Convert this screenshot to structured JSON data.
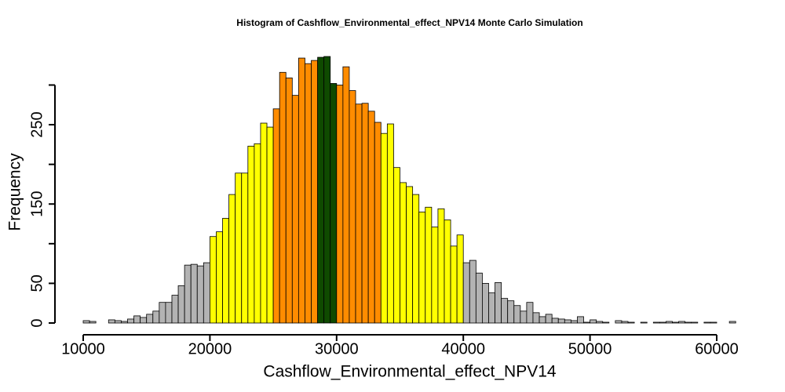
{
  "chart_data": {
    "type": "histogram",
    "title": "Histogram of  Cashflow_Environmental_effect_NPV14  Monte Carlo Simulation",
    "x_label": "Cashflow_Environmental_effect_NPV14",
    "y_label": "Frequency",
    "bins": [
      10000,
      10500,
      11000,
      11500,
      12000,
      12500,
      13000,
      13500,
      14000,
      14500,
      15000,
      15500,
      16000,
      16500,
      17000,
      17500,
      18000,
      18500,
      19000,
      19500,
      20000,
      20500,
      21000,
      21500,
      22000,
      22500,
      23000,
      23500,
      24000,
      24500,
      25000,
      25500,
      26000,
      26500,
      27000,
      27500,
      28000,
      28500,
      29000,
      29500,
      30000,
      30500,
      31000,
      31500,
      32000,
      32500,
      33000,
      33500,
      34000,
      34500,
      35000,
      35500,
      36000,
      36500,
      37000,
      37500,
      38000,
      38500,
      39000,
      39500,
      40000,
      40500,
      41000,
      41500,
      42000,
      42500,
      43000,
      43500,
      44000,
      44500,
      45000,
      45500,
      46000,
      46500,
      47000,
      47500,
      48000,
      48500,
      49000,
      49500,
      50000,
      50500,
      51000,
      51500,
      52000,
      52500,
      53000,
      53500,
      54000,
      54500,
      55000,
      55500,
      56000,
      56500,
      57000,
      57500,
      58000,
      58500,
      59000,
      59500,
      60000,
      60500,
      61000,
      61500
    ],
    "values": [
      3,
      2,
      0,
      0,
      4,
      3,
      2,
      5,
      9,
      7,
      11,
      15,
      26,
      26,
      35,
      47,
      73,
      74,
      72,
      76,
      109,
      115,
      132,
      162,
      189,
      189,
      223,
      226,
      252,
      247,
      270,
      316,
      309,
      287,
      334,
      327,
      331,
      335,
      336,
      302,
      300,
      323,
      293,
      276,
      277,
      267,
      253,
      239,
      251,
      196,
      177,
      172,
      162,
      140,
      146,
      121,
      144,
      130,
      97,
      111,
      76,
      79,
      63,
      50,
      38,
      51,
      31,
      28,
      22,
      15,
      26,
      13,
      8,
      11,
      6,
      5,
      4,
      3,
      8,
      1,
      4,
      2,
      1,
      0,
      3,
      2,
      1,
      0,
      1,
      0,
      1,
      1,
      2,
      1,
      2,
      1,
      1,
      0,
      1,
      1,
      0,
      0,
      2
    ],
    "color": "#b3b3b3",
    "color_ranges": [
      {
        "range": [
          20000,
          25000
        ],
        "color": "#ffff00"
      },
      {
        "range": [
          25000,
          28500
        ],
        "color": "#ff8c00"
      },
      {
        "range": [
          28500,
          30000
        ],
        "color": "#0f4a00"
      },
      {
        "range": [
          30000,
          33500
        ],
        "color": "#ff8c00"
      },
      {
        "range": [
          33500,
          40000
        ],
        "color": "#ffff00"
      }
    ],
    "xlim": [
      10000,
      60000
    ],
    "xticks": [
      10000,
      20000,
      30000,
      40000,
      50000,
      60000
    ],
    "ylim": [
      0,
      340
    ],
    "yticks": [
      0,
      50,
      150,
      250
    ],
    "yminor_ticks": [
      100,
      200,
      300
    ]
  }
}
